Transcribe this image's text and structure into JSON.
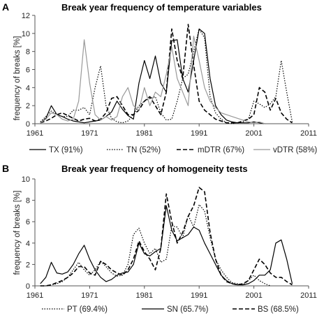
{
  "chart_data": [
    {
      "type": "line",
      "panel_label": "A",
      "title": "Break year frequency of temperature variables",
      "ylabel": "frequency of breaks [%]",
      "xlabel": "",
      "xlim": [
        1961,
        2011
      ],
      "ylim": [
        0,
        12
      ],
      "xticks": [
        "1961",
        "1971",
        "1981",
        "1991",
        "2001",
        "2011"
      ],
      "yticks": [
        "0",
        "2",
        "4",
        "6",
        "8",
        "10",
        "12"
      ],
      "grid": false,
      "legend": "bottom",
      "series": [
        {
          "name": "TX (91%)",
          "style": "solid",
          "color": "#000000",
          "x": [
            1962,
            1963,
            1964,
            1965,
            1966,
            1967,
            1968,
            1969,
            1970,
            1971,
            1972,
            1973,
            1974,
            1975,
            1976,
            1977,
            1978,
            1979,
            1980,
            1981,
            1982,
            1983,
            1984,
            1985,
            1986,
            1987,
            1988,
            1989,
            1990,
            1991,
            1992,
            1993,
            1994,
            1995,
            1996,
            1997,
            1998,
            1999,
            2000,
            2001,
            2002,
            2003
          ],
          "y": [
            0.1,
            0.6,
            2.0,
            1.0,
            0.8,
            0.5,
            0.3,
            0.2,
            0.1,
            0.2,
            0.3,
            0.4,
            0.8,
            1.3,
            2.5,
            1.6,
            0.9,
            0.5,
            4.5,
            7.0,
            5.0,
            7.5,
            4.5,
            3.5,
            9.2,
            9.3,
            5.0,
            3.5,
            7.0,
            10.5,
            10.0,
            5.0,
            2.0,
            1.0,
            0.4,
            0.2,
            0.1,
            0.1,
            0.1,
            0.2,
            0.1,
            0.0
          ]
        },
        {
          "name": "TN (52%)",
          "style": "dotted",
          "color": "#000000",
          "x": [
            1962,
            1963,
            1964,
            1965,
            1966,
            1967,
            1968,
            1969,
            1970,
            1971,
            1972,
            1973,
            1974,
            1975,
            1976,
            1977,
            1978,
            1979,
            1980,
            1981,
            1982,
            1983,
            1984,
            1985,
            1986,
            1987,
            1988,
            1989,
            1990,
            1991,
            1992,
            1993,
            1994,
            1995,
            1996,
            1997,
            1998,
            1999,
            2000,
            2001,
            2002,
            2003,
            2004,
            2005,
            2006,
            2007,
            2008
          ],
          "y": [
            0.2,
            0.8,
            1.4,
            1.0,
            0.8,
            0.8,
            1.5,
            1.5,
            1.8,
            1.0,
            4.0,
            6.4,
            2.0,
            0.6,
            0.2,
            0.1,
            0.3,
            1.0,
            2.0,
            2.5,
            2.8,
            3.0,
            1.2,
            0.4,
            0.5,
            2.5,
            5.0,
            5.5,
            8.0,
            10.5,
            9.5,
            3.0,
            1.2,
            0.5,
            0.1,
            0.0,
            0.1,
            0.2,
            0.5,
            2.5,
            2.2,
            1.8,
            2.2,
            3.0,
            7.0,
            3.5,
            0.2
          ]
        },
        {
          "name": "mDTR (67%)",
          "style": "dashed",
          "color": "#000000",
          "x": [
            1962,
            1963,
            1964,
            1965,
            1966,
            1967,
            1968,
            1969,
            1970,
            1971,
            1972,
            1973,
            1974,
            1975,
            1976,
            1977,
            1978,
            1979,
            1980,
            1981,
            1982,
            1983,
            1984,
            1985,
            1986,
            1987,
            1988,
            1989,
            1990,
            1991,
            1992,
            1993,
            1994,
            1995,
            1996,
            1997,
            1998,
            1999,
            2000,
            2001,
            2002,
            2003,
            2004,
            2005,
            2006,
            2007,
            2008
          ],
          "y": [
            0.1,
            0.3,
            0.6,
            1.0,
            1.2,
            0.9,
            0.6,
            0.3,
            0.5,
            0.6,
            0.3,
            0.5,
            1.2,
            2.8,
            3.0,
            2.0,
            1.0,
            1.0,
            1.5,
            2.5,
            3.0,
            2.0,
            1.0,
            3.5,
            10.5,
            7.0,
            5.0,
            11.0,
            6.5,
            2.5,
            1.5,
            1.0,
            0.5,
            0.3,
            0.1,
            0.1,
            0.1,
            0.3,
            0.5,
            1.0,
            4.0,
            3.5,
            1.5,
            2.8,
            1.2,
            0.5,
            0.1
          ]
        },
        {
          "name": "vDTR (58%)",
          "style": "solid",
          "color": "#999999",
          "x": [
            1962,
            1963,
            1964,
            1965,
            1966,
            1967,
            1968,
            1969,
            1970,
            1971,
            1972,
            1973,
            1974,
            1975,
            1976,
            1977,
            1978,
            1979,
            1980,
            1981,
            1982,
            1983,
            1984,
            1985,
            1986,
            1987,
            1988,
            1989,
            1990,
            1991,
            1992,
            1993,
            1994,
            1995,
            1996,
            1997,
            1998,
            1999,
            2000,
            2001,
            2002,
            2003
          ],
          "y": [
            0.1,
            0.5,
            1.2,
            1.0,
            0.5,
            0.3,
            0.5,
            2.5,
            9.3,
            4.5,
            1.0,
            0.4,
            0.8,
            0.4,
            0.8,
            3.0,
            4.0,
            2.0,
            1.5,
            4.0,
            2.0,
            3.5,
            3.0,
            5.5,
            8.5,
            5.0,
            3.5,
            2.0,
            9.7,
            7.0,
            4.0,
            2.5,
            1.8,
            1.2,
            1.0,
            0.8,
            0.6,
            0.4,
            0.2,
            0.1,
            0.2,
            0.0
          ]
        }
      ]
    },
    {
      "type": "line",
      "panel_label": "B",
      "title": "Break year frequency of homogeneity tests",
      "ylabel": "frequency of breaks [%]",
      "xlabel": "",
      "xlim": [
        1961,
        2011
      ],
      "ylim": [
        0,
        10
      ],
      "xticks": [
        "1961",
        "1971",
        "1981",
        "1991",
        "2001",
        "2011"
      ],
      "yticks": [
        "0",
        "2",
        "4",
        "6",
        "8",
        "10"
      ],
      "grid": false,
      "legend": "bottom",
      "series": [
        {
          "name": "PT (69.4%)",
          "style": "dotted",
          "color": "#000000",
          "x": [
            1962,
            1963,
            1964,
            1965,
            1966,
            1967,
            1968,
            1969,
            1970,
            1971,
            1972,
            1973,
            1974,
            1975,
            1976,
            1977,
            1978,
            1979,
            1980,
            1981,
            1982,
            1983,
            1984,
            1985,
            1986,
            1987,
            1988,
            1989,
            1990,
            1991,
            1992,
            1993,
            1994,
            1995,
            1996,
            1997,
            1998,
            1999,
            2000,
            2001,
            2002,
            2003,
            2004
          ],
          "y": [
            0.0,
            0.0,
            0.1,
            0.2,
            0.4,
            0.8,
            1.5,
            2.2,
            1.5,
            1.0,
            1.5,
            2.3,
            1.8,
            1.2,
            0.9,
            1.0,
            2.0,
            4.8,
            5.4,
            4.0,
            3.0,
            3.5,
            2.2,
            2.5,
            5.6,
            5.5,
            4.5,
            6.6,
            5.5,
            7.6,
            7.0,
            4.5,
            2.5,
            1.5,
            0.8,
            0.3,
            0.2,
            0.1,
            0.5,
            1.0,
            0.5,
            0.2,
            0.0
          ]
        },
        {
          "name": "SN (65.7%)",
          "style": "solid",
          "color": "#000000",
          "x": [
            1962,
            1963,
            1964,
            1965,
            1966,
            1967,
            1968,
            1969,
            1970,
            1971,
            1972,
            1973,
            1974,
            1975,
            1976,
            1977,
            1978,
            1979,
            1980,
            1981,
            1982,
            1983,
            1984,
            1985,
            1986,
            1987,
            1988,
            1989,
            1990,
            1991,
            1992,
            1993,
            1994,
            1995,
            1996,
            1997,
            1998,
            1999,
            2000,
            2001,
            2002,
            2003,
            2004,
            2005,
            2006,
            2007,
            2008
          ],
          "y": [
            0.2,
            0.8,
            2.2,
            1.2,
            1.1,
            1.3,
            2.0,
            3.0,
            3.8,
            2.5,
            1.5,
            0.8,
            0.4,
            0.6,
            1.0,
            1.2,
            1.3,
            2.0,
            4.0,
            3.0,
            2.8,
            3.2,
            3.5,
            7.5,
            5.2,
            4.2,
            4.5,
            4.8,
            5.5,
            5.2,
            4.0,
            3.0,
            2.0,
            1.0,
            0.5,
            0.2,
            0.1,
            0.1,
            0.2,
            0.5,
            1.0,
            1.0,
            1.5,
            4.0,
            4.3,
            2.5,
            0.2
          ]
        },
        {
          "name": "BS (68.5%)",
          "style": "dashed",
          "color": "#000000",
          "x": [
            1962,
            1963,
            1964,
            1965,
            1966,
            1967,
            1968,
            1969,
            1970,
            1971,
            1972,
            1973,
            1974,
            1975,
            1976,
            1977,
            1978,
            1979,
            1980,
            1981,
            1982,
            1983,
            1984,
            1985,
            1986,
            1987,
            1988,
            1989,
            1990,
            1991,
            1992,
            1993,
            1994,
            1995,
            1996,
            1997,
            1998,
            1999,
            2000,
            2001,
            2002,
            2003,
            2004,
            2005,
            2006,
            2007,
            2008
          ],
          "y": [
            0.0,
            0.0,
            0.1,
            0.3,
            0.5,
            0.8,
            1.2,
            1.8,
            1.8,
            1.2,
            1.0,
            2.3,
            2.0,
            1.5,
            1.2,
            1.0,
            1.5,
            2.5,
            4.2,
            3.2,
            2.5,
            1.5,
            3.5,
            8.6,
            6.0,
            4.0,
            5.0,
            6.5,
            7.5,
            9.2,
            8.8,
            5.0,
            2.5,
            1.0,
            0.4,
            0.2,
            0.1,
            0.2,
            0.5,
            1.5,
            2.5,
            2.0,
            1.2,
            0.8,
            0.8,
            0.4,
            0.1
          ]
        }
      ]
    }
  ]
}
